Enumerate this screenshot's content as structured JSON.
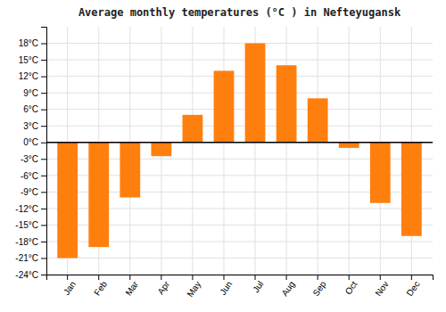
{
  "chart_data": {
    "type": "bar",
    "title": "Average monthly temperatures (°C ) in Nefteyugansk",
    "categories": [
      "Jan",
      "Feb",
      "Mar",
      "Apr",
      "May",
      "Jun",
      "Jul",
      "Aug",
      "Sep",
      "Oct",
      "Nov",
      "Dec"
    ],
    "values": [
      -21,
      -19,
      -10,
      -2.5,
      5,
      13,
      18,
      14,
      8,
      -1,
      -11,
      -17
    ],
    "ylim": [
      -24,
      21
    ],
    "yticks": [
      {
        "value": -24,
        "label": "-24°C"
      },
      {
        "value": -21,
        "label": "-21°C"
      },
      {
        "value": -18,
        "label": "-18°C"
      },
      {
        "value": -15,
        "label": "-15°C"
      },
      {
        "value": -12,
        "label": "-12°C"
      },
      {
        "value": -9,
        "label": "-9°C"
      },
      {
        "value": -6,
        "label": "-6°C"
      },
      {
        "value": -3,
        "label": "-3°C"
      },
      {
        "value": 0,
        "label": "0°C"
      },
      {
        "value": 3,
        "label": "3°C"
      },
      {
        "value": 6,
        "label": "6°C"
      },
      {
        "value": 9,
        "label": "9°C"
      },
      {
        "value": 12,
        "label": "12°C"
      },
      {
        "value": 15,
        "label": "15°C"
      },
      {
        "value": 18,
        "label": "18°C"
      }
    ],
    "grid": true
  }
}
